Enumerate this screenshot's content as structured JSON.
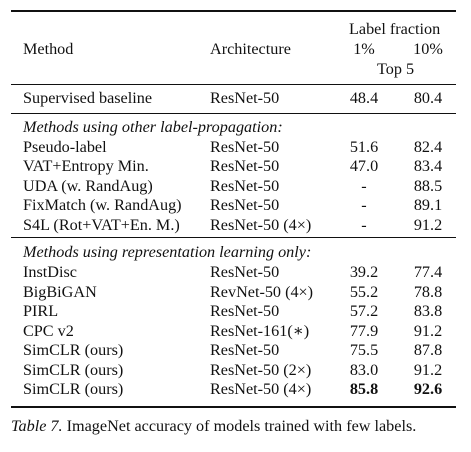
{
  "header": {
    "method": "Method",
    "architecture": "Architecture",
    "label_fraction": "Label fraction",
    "pct1": "1%",
    "pct10": "10%",
    "top5": "Top 5"
  },
  "baseline": {
    "method": "Supervised baseline",
    "arch": "ResNet-50",
    "v1": "48.4",
    "v10": "80.4"
  },
  "groups": [
    {
      "title": "Methods using other label-propagation:",
      "rows": [
        {
          "method": "Pseudo-label",
          "arch": "ResNet-50",
          "v1": "51.6",
          "v10": "82.4"
        },
        {
          "method": "VAT+Entropy Min.",
          "arch": "ResNet-50",
          "v1": "47.0",
          "v10": "83.4"
        },
        {
          "method": "UDA (w. RandAug)",
          "arch": "ResNet-50",
          "v1": "-",
          "v10": "88.5"
        },
        {
          "method": "FixMatch (w. RandAug)",
          "arch": "ResNet-50",
          "v1": "-",
          "v10": "89.1"
        },
        {
          "method": "S4L (Rot+VAT+En. M.)",
          "arch": "ResNet-50 (4×)",
          "v1": "-",
          "v10": "91.2"
        }
      ]
    },
    {
      "title": "Methods using representation learning only:",
      "rows": [
        {
          "method": "InstDisc",
          "arch": "ResNet-50",
          "v1": "39.2",
          "v10": "77.4"
        },
        {
          "method": "BigBiGAN",
          "arch": "RevNet-50 (4×)",
          "v1": "55.2",
          "v10": "78.8"
        },
        {
          "method": "PIRL",
          "arch": "ResNet-50",
          "v1": "57.2",
          "v10": "83.8"
        },
        {
          "method": "CPC v2",
          "arch": "ResNet-161(∗)",
          "v1": "77.9",
          "v10": "91.2"
        },
        {
          "method": "SimCLR (ours)",
          "arch": "ResNet-50",
          "v1": "75.5",
          "v10": "87.8"
        },
        {
          "method": "SimCLR (ours)",
          "arch": "ResNet-50 (2×)",
          "v1": "83.0",
          "v10": "91.2"
        },
        {
          "method": "SimCLR (ours)",
          "arch": "ResNet-50 (4×)",
          "v1": "85.8",
          "v10": "92.6",
          "bold": true
        }
      ]
    }
  ],
  "caption": {
    "label": "Table 7.",
    "text": "ImageNet accuracy of models trained with few labels."
  }
}
